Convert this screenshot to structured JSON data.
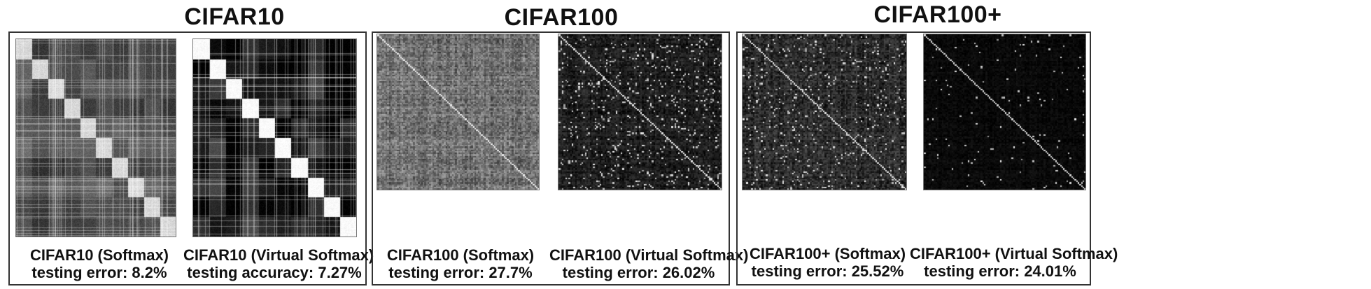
{
  "groups": [
    {
      "title": "CIFAR10",
      "panels": [
        {
          "caption": "CIFAR10 (Softmax)",
          "metric": "testing error: 8.2%"
        },
        {
          "caption": "CIFAR10 (Virtual Softmax)",
          "metric": "testing accuracy: 7.27%"
        }
      ]
    },
    {
      "title": "CIFAR100",
      "panels": [
        {
          "caption": "CIFAR100 (Softmax)",
          "metric": "testing error: 27.7%"
        },
        {
          "caption": "CIFAR100 (Virtual Softmax)",
          "metric": "testing error: 26.02%"
        }
      ]
    },
    {
      "title": "CIFAR100+",
      "panels": [
        {
          "caption": "CIFAR100+ (Softmax)",
          "metric": "testing error: 25.52%"
        },
        {
          "caption": "CIFAR100+ (Virtual Softmax)",
          "metric": "testing error: 24.01%"
        }
      ]
    }
  ]
}
